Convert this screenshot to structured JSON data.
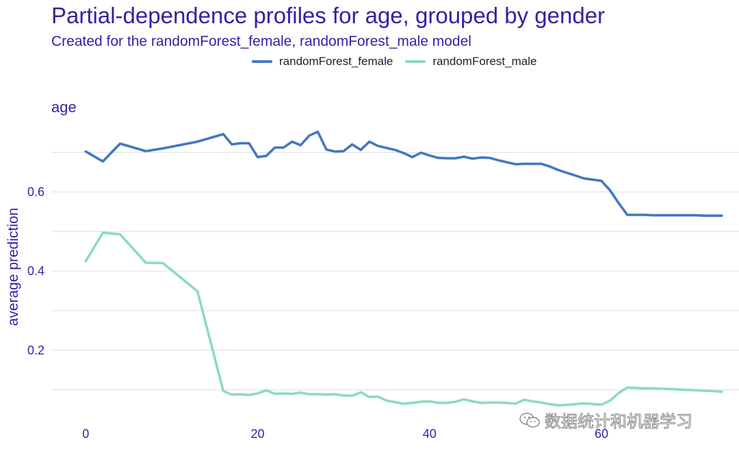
{
  "chart_data": {
    "type": "line",
    "title": "Partial-dependence profiles for age, grouped by gender",
    "subtitle": "Created for the randomForest_female, randomForest_male model",
    "panel_label": "age",
    "xlabel": "",
    "ylabel": "average prediction",
    "xlim": [
      -4,
      76
    ],
    "ylim": [
      0.065,
      0.765
    ],
    "x_ticks": [
      0,
      20,
      40,
      60
    ],
    "y_ticks": [
      0.2,
      0.4,
      0.6
    ],
    "y_tick_labels": [
      "0.2",
      "0.4",
      "0.6"
    ],
    "grid": true,
    "legend_position": "top",
    "series": [
      {
        "name": "randomForest_female",
        "color": "#4378bf",
        "x": [
          0,
          2,
          4,
          7,
          9,
          13,
          16,
          17,
          18,
          19,
          20,
          21,
          22,
          23,
          24,
          25,
          26,
          27,
          28,
          29,
          30,
          31,
          32,
          33,
          34,
          35,
          36,
          37,
          38,
          39,
          40,
          41,
          42,
          43,
          44,
          45,
          46,
          47,
          48,
          49,
          50,
          51,
          52,
          53,
          54,
          55,
          56,
          57,
          58,
          59,
          60,
          61,
          62,
          63,
          64,
          65,
          66,
          67,
          68,
          69,
          70,
          71,
          72,
          73,
          74
        ],
        "y": [
          0.702,
          0.677,
          0.722,
          0.703,
          0.71,
          0.727,
          0.746,
          0.72,
          0.723,
          0.723,
          0.688,
          0.691,
          0.712,
          0.712,
          0.727,
          0.718,
          0.742,
          0.752,
          0.707,
          0.702,
          0.703,
          0.72,
          0.706,
          0.727,
          0.716,
          0.711,
          0.706,
          0.698,
          0.688,
          0.699,
          0.692,
          0.686,
          0.685,
          0.685,
          0.689,
          0.684,
          0.687,
          0.686,
          0.68,
          0.675,
          0.67,
          0.671,
          0.671,
          0.671,
          0.664,
          0.655,
          0.648,
          0.641,
          0.634,
          0.631,
          0.628,
          0.604,
          0.572,
          0.542,
          0.542,
          0.542,
          0.541,
          0.541,
          0.541,
          0.541,
          0.541,
          0.541,
          0.54,
          0.54,
          0.54
        ]
      },
      {
        "name": "randomForest_male",
        "color": "#8bdcbe",
        "x": [
          0,
          2,
          4,
          7,
          9,
          13,
          16,
          17,
          18,
          19,
          20,
          21,
          22,
          23,
          24,
          25,
          26,
          27,
          28,
          29,
          30,
          31,
          32,
          33,
          34,
          35,
          36,
          37,
          38,
          39,
          40,
          41,
          42,
          43,
          44,
          45,
          46,
          47,
          48,
          49,
          50,
          51,
          52,
          53,
          54,
          55,
          56,
          57,
          58,
          59,
          60,
          61,
          62,
          63,
          64,
          65,
          66,
          67,
          68,
          69,
          70,
          71,
          72,
          73,
          74
        ],
        "y": [
          0.425,
          0.497,
          0.493,
          0.421,
          0.42,
          0.349,
          0.097,
          0.088,
          0.089,
          0.087,
          0.091,
          0.099,
          0.09,
          0.091,
          0.09,
          0.093,
          0.089,
          0.089,
          0.088,
          0.089,
          0.086,
          0.085,
          0.094,
          0.082,
          0.083,
          0.073,
          0.069,
          0.065,
          0.067,
          0.07,
          0.071,
          0.067,
          0.067,
          0.07,
          0.076,
          0.071,
          0.067,
          0.068,
          0.068,
          0.067,
          0.065,
          0.075,
          0.071,
          0.068,
          0.064,
          0.061,
          0.062,
          0.064,
          0.066,
          0.064,
          0.063,
          0.073,
          0.092,
          0.106,
          0.105,
          0.104,
          0.104,
          0.103,
          0.102,
          0.101,
          0.1,
          0.099,
          0.098,
          0.097,
          0.095
        ]
      }
    ]
  },
  "watermark": {
    "text": "数据统计和机器学习",
    "icon": "wechat-icon"
  }
}
